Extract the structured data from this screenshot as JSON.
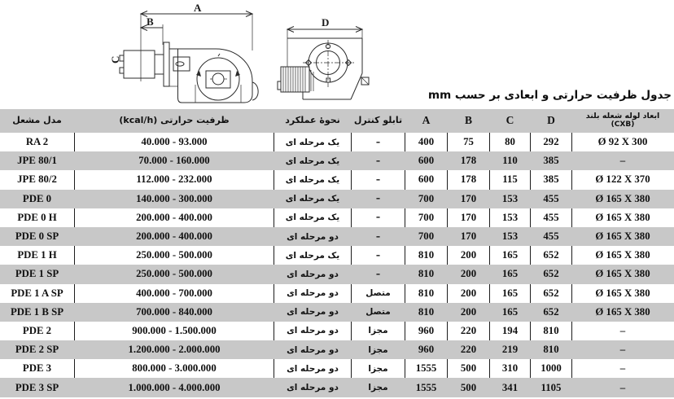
{
  "title": "جدول ظرفیت حرارتی و ابعادی بر حسب mm",
  "diagram": {
    "labels": {
      "a": "A",
      "b": "B",
      "c": "C",
      "d": "D"
    }
  },
  "table": {
    "headers": {
      "model": "مدل مشعل",
      "capacity": "ظرفیت حرارتی (kcal/h)",
      "operation": "نحوهٔ عملکرد",
      "panel": "تابلو کنترل",
      "a": "A",
      "b": "B",
      "c": "C",
      "d": "D",
      "flame_tube_line1": "ابعاد لوله شعله بلند",
      "flame_tube_line2": "(CXB)"
    },
    "rows": [
      {
        "model": "RA 2",
        "capacity": "40.000 - 93.000",
        "operation": "یک مرحله ای",
        "panel": "–",
        "a": "400",
        "b": "75",
        "c": "80",
        "d": "292",
        "flame_tube": "Ø  92 X 300"
      },
      {
        "model": "JPE 80/1",
        "capacity": "70.000 - 160.000",
        "operation": "یک مرحله ای",
        "panel": "–",
        "a": "600",
        "b": "178",
        "c": "110",
        "d": "385",
        "flame_tube": "–"
      },
      {
        "model": "JPE 80/2",
        "capacity": "112.000 - 232.000",
        "operation": "یک مرحله ای",
        "panel": "–",
        "a": "600",
        "b": "178",
        "c": "115",
        "d": "385",
        "flame_tube": "Ø 122 X 370"
      },
      {
        "model": "PDE 0",
        "capacity": "140.000 - 300.000",
        "operation": "یک مرحله ای",
        "panel": "–",
        "a": "700",
        "b": "170",
        "c": "153",
        "d": "455",
        "flame_tube": "Ø 165 X 380"
      },
      {
        "model": "PDE 0 H",
        "capacity": "200.000 - 400.000",
        "operation": "یک مرحله ای",
        "panel": "–",
        "a": "700",
        "b": "170",
        "c": "153",
        "d": "455",
        "flame_tube": "Ø 165 X 380"
      },
      {
        "model": "PDE 0 SP",
        "capacity": "200.000 - 400.000",
        "operation": "دو مرحله ای",
        "panel": "–",
        "a": "700",
        "b": "170",
        "c": "153",
        "d": "455",
        "flame_tube": "Ø 165 X 380"
      },
      {
        "model": "PDE 1 H",
        "capacity": "250.000 - 500.000",
        "operation": "یک مرحله ای",
        "panel": "–",
        "a": "810",
        "b": "200",
        "c": "165",
        "d": "652",
        "flame_tube": "Ø 165 X 380"
      },
      {
        "model": "PDE 1 SP",
        "capacity": "250.000 - 500.000",
        "operation": "دو مرحله ای",
        "panel": "–",
        "a": "810",
        "b": "200",
        "c": "165",
        "d": "652",
        "flame_tube": "Ø 165 X 380"
      },
      {
        "model": "PDE 1 A SP",
        "capacity": "400.000 - 700.000",
        "operation": "دو مرحله ای",
        "panel": "متصل",
        "a": "810",
        "b": "200",
        "c": "165",
        "d": "652",
        "flame_tube": "Ø 165 X 380"
      },
      {
        "model": "PDE 1 B SP",
        "capacity": "700.000 - 840.000",
        "operation": "دو مرحله ای",
        "panel": "متصل",
        "a": "810",
        "b": "200",
        "c": "165",
        "d": "652",
        "flame_tube": "Ø 165 X 380"
      },
      {
        "model": "PDE 2",
        "capacity": "900.000 - 1.500.000",
        "operation": "دو مرحله ای",
        "panel": "مجزا",
        "a": "960",
        "b": "220",
        "c": "194",
        "d": "810",
        "flame_tube": "–"
      },
      {
        "model": "PDE 2 SP",
        "capacity": "1.200.000 - 2.000.000",
        "operation": "دو مرحله ای",
        "panel": "مجزا",
        "a": "960",
        "b": "220",
        "c": "219",
        "d": "810",
        "flame_tube": "–"
      },
      {
        "model": "PDE 3",
        "capacity": "800.000 - 3.000.000",
        "operation": "دو مرحله ای",
        "panel": "مجزا",
        "a": "1555",
        "b": "500",
        "c": "310",
        "d": "1000",
        "flame_tube": "–"
      },
      {
        "model": "PDE 3 SP",
        "capacity": "1.000.000 - 4.000.000",
        "operation": "دو مرحله ای",
        "panel": "مجزا",
        "a": "1555",
        "b": "500",
        "c": "341",
        "d": "1105",
        "flame_tube": "–"
      }
    ]
  },
  "colors": {
    "row_stripe": "#c8c8c8",
    "header_bg": "#c8c8c8",
    "line": "#2b2b2b"
  }
}
